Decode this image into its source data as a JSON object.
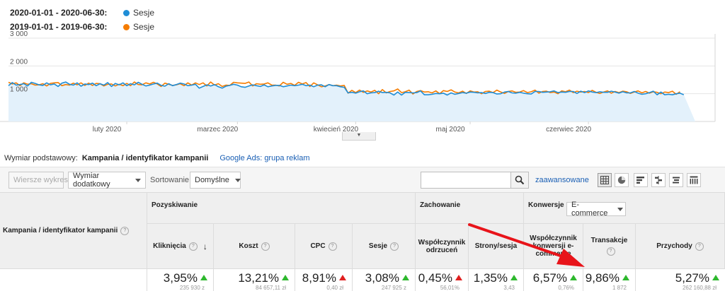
{
  "legend": {
    "rows": [
      {
        "range": "2020-01-01 - 2020-06-30:",
        "series": "Sesje",
        "color": "#1f8dd6"
      },
      {
        "range": "2019-01-01 - 2019-06-30:",
        "series": "Sesje",
        "color": "#f57c00"
      }
    ]
  },
  "chart_data": {
    "type": "line",
    "ylim": [
      0,
      3000
    ],
    "yticks": [
      "3 000",
      "2 000",
      "1 000"
    ],
    "ytick_values": [
      3000,
      2000,
      1000
    ],
    "xticks": [
      "luty 2020",
      "marzec 2020",
      "kwiecień 2020",
      "maj 2020",
      "czerwiec 2020"
    ],
    "xtick_days": [
      31,
      60,
      91,
      121,
      152
    ],
    "x_count": 181,
    "grid": true,
    "series": [
      {
        "name": "Sesje",
        "period": "2020-01-01 - 2020-06-30",
        "color": "#1f8dd6",
        "fill": "#e3f1fb",
        "values": [
          1290,
          1400,
          1310,
          1330,
          1360,
          1280,
          1410,
          1370,
          1320,
          1300,
          1390,
          1320,
          1350,
          1260,
          1380,
          1420,
          1340,
          1310,
          1390,
          1270,
          1350,
          1330,
          1380,
          1290,
          1360,
          1310,
          1400,
          1260,
          1370,
          1320,
          1390,
          1290,
          1360,
          1320,
          1410,
          1340,
          1280,
          1310,
          1350,
          1380,
          1300,
          1270,
          1360,
          1290,
          1330,
          1380,
          1350,
          1290,
          1310,
          1340,
          1200,
          1260,
          1320,
          1280,
          1330,
          1250,
          1200,
          1270,
          1300,
          1340,
          1310,
          1250,
          1230,
          1280,
          1320,
          1290,
          1260,
          1320,
          1250,
          1280,
          1300,
          1300,
          1250,
          1280,
          1310,
          1290,
          1310,
          1340,
          1290,
          1310,
          1250,
          1310,
          1320,
          1250,
          1330,
          1290,
          1290,
          1250,
          1230,
          1030,
          1050,
          1020,
          1070,
          1100,
          1000,
          1030,
          1040,
          1090,
          1040,
          1050,
          1030,
          950,
          1060,
          950,
          1050,
          1040,
          1030,
          1040,
          1100,
          960,
          960,
          980,
          1010,
          1000,
          1020,
          950,
          1030,
          980,
          1010,
          1040,
          1020,
          1060,
          1050,
          1030,
          1040,
          1010,
          1050,
          1040,
          990,
          1000,
          1060,
          1080,
          1030,
          1020,
          1050,
          1020,
          1000,
          990,
          1080,
          1080,
          1050,
          1060,
          1070,
          1100,
          1040,
          1060,
          1050,
          1080,
          1080,
          1010,
          1090,
          1040,
          1100,
          1060,
          1040,
          1070,
          1050,
          1050,
          1090,
          1060,
          1020,
          1070,
          1030,
          1030,
          1080,
          1020,
          980,
          1000,
          1040,
          1090,
          960,
          1060,
          960,
          980,
          960,
          1000,
          1020,
          960
        ]
      },
      {
        "name": "Sesje",
        "period": "2019-01-01 - 2019-06-30",
        "color": "#f57c00",
        "values": [
          1410,
          1350,
          1390,
          1290,
          1390,
          1340,
          1360,
          1310,
          1320,
          1360,
          1280,
          1370,
          1390,
          1400,
          1290,
          1330,
          1310,
          1380,
          1320,
          1390,
          1300,
          1380,
          1300,
          1370,
          1360,
          1280,
          1340,
          1350,
          1280,
          1340,
          1290,
          1370,
          1290,
          1420,
          1330,
          1320,
          1390,
          1350,
          1410,
          1350,
          1260,
          1380,
          1340,
          1300,
          1320,
          1360,
          1290,
          1390,
          1310,
          1390,
          1330,
          1390,
          1280,
          1420,
          1310,
          1360,
          1260,
          1310,
          1300,
          1410,
          1390,
          1380,
          1370,
          1420,
          1280,
          1360,
          1340,
          1350,
          1390,
          1310,
          1310,
          1280,
          1410,
          1340,
          1370,
          1300,
          1410,
          1350,
          1400,
          1260,
          1390,
          1320,
          1250,
          1280,
          1330,
          1290,
          1310,
          1280,
          1300,
          1020,
          1120,
          1040,
          1130,
          1050,
          1100,
          1060,
          1120,
          1000,
          1150,
          1030,
          1080,
          1100,
          1170,
          1040,
          1070,
          1130,
          990,
          1080,
          1110,
          1060,
          1070,
          1030,
          1100,
          1000,
          1110,
          1080,
          1140,
          1060,
          1030,
          1090,
          1010,
          1100,
          1060,
          1070,
          1000,
          1080,
          1090,
          1040,
          1130,
          1060,
          1010,
          1080,
          1100,
          1050,
          1060,
          1110,
          1040,
          1070,
          1130,
          1020,
          1080,
          1090,
          1040,
          1060,
          1000,
          1100,
          1070,
          1130,
          1040,
          1090,
          1060,
          1080,
          1040,
          1120,
          1050,
          1010,
          1060,
          1100,
          1020,
          1080,
          1040,
          1090,
          1070,
          1010,
          1060,
          1100,
          1030,
          1080,
          1020,
          1070,
          1050,
          1000,
          1060,
          1040,
          1090,
          980,
          1070
        ]
      }
    ]
  },
  "dimension": {
    "label": "Wymiar podstawowy:",
    "active": "Kampania / identyfikator kampanii",
    "link": "Google Ads: grupa reklam"
  },
  "toolbar": {
    "plot_rows": "Wiersze wykresu",
    "secondary_dim": "Wymiar dodatkowy",
    "sort_label": "Sortowanie:",
    "sort_value": "Domyślne",
    "search_value": "",
    "advanced": "zaawansowane"
  },
  "table": {
    "dim_header": "Kampania / identyfikator kampanii",
    "groups": {
      "acquisition": "Pozyskiwanie",
      "behavior": "Zachowanie",
      "conversions": "Konwersje",
      "conversion_type": "E-commerce"
    },
    "metrics": [
      {
        "name": "Kliknięcia",
        "value": "3,95%",
        "sub": "235 930 z"
      },
      {
        "name": "Koszt",
        "value": "13,21%",
        "sub": "84 657,11 zł"
      },
      {
        "name": "CPC",
        "value": "8,91%",
        "sub": "0,40 zł"
      },
      {
        "name": "Sesje",
        "value": "3,08%",
        "sub": "247 925 z"
      },
      {
        "name": "Współczynnik odrzuceń",
        "value": "0,45%",
        "sub": "56,01%"
      },
      {
        "name": "Strony/sesja",
        "value": "1,35%",
        "sub": "3,43"
      },
      {
        "name": "Współczynnik konwersji e-commerce",
        "value": "6,57%",
        "sub": "0,76%"
      },
      {
        "name": "Transakcje",
        "value": "9,86%",
        "sub": "1 872"
      },
      {
        "name": "Przychody",
        "value": "5,27%",
        "sub": "262 160,88 zł"
      }
    ]
  }
}
